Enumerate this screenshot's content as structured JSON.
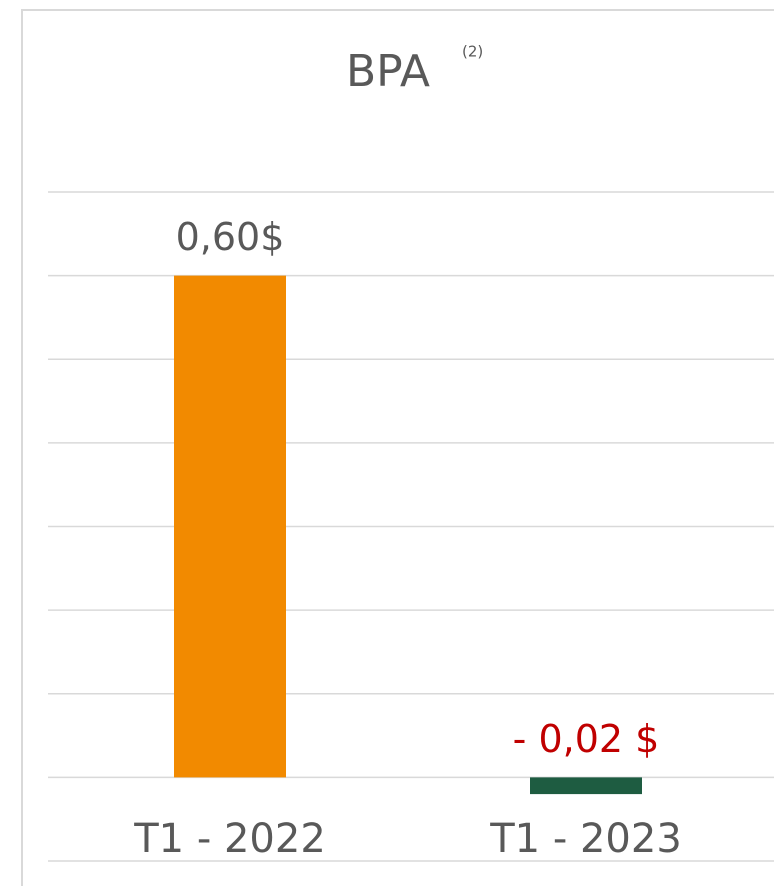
{
  "chart_data": {
    "type": "bar",
    "title": "BPA",
    "title_note": "(2)",
    "categories": [
      "T1 - 2022",
      "T1 - 2023"
    ],
    "values": [
      0.6,
      -0.02
    ],
    "value_labels": [
      "0,60$",
      "- 0,02 $"
    ],
    "colors": [
      "#f28a00",
      "#1e5c41"
    ],
    "label_colors": [
      "#595959",
      "#c00000"
    ],
    "ylim": [
      -0.1,
      0.7
    ],
    "yticks": [
      -0.1,
      0,
      0.1,
      0.2,
      0.3,
      0.4,
      0.5,
      0.6,
      0.7
    ],
    "grid": true
  }
}
